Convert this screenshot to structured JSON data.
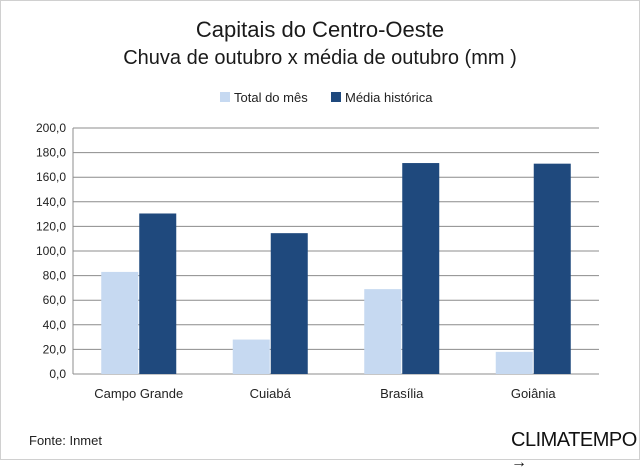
{
  "chart_data": {
    "type": "bar",
    "title": "Capitais do Centro-Oeste",
    "subtitle": "Chuva de outubro x média de outubro (mm )",
    "categories": [
      "Campo Grande",
      "Cuiabá",
      "Brasília",
      "Goiânia"
    ],
    "series": [
      {
        "name": "Total do mês",
        "values": [
          83,
          28,
          69,
          18
        ],
        "color": "#c6d9f1"
      },
      {
        "name": "Média histórica",
        "values": [
          130.5,
          114.5,
          171.5,
          171
        ],
        "color": "#1f497d"
      }
    ],
    "ylim": [
      0,
      200
    ],
    "yticks": [
      "0,0",
      "20,0",
      "40,0",
      "60,0",
      "80,0",
      "100,0",
      "120,0",
      "140,0",
      "160,0",
      "180,0",
      "200,0"
    ],
    "grid": true,
    "legend": "top"
  },
  "footer": {
    "source": "Fonte: Inmet",
    "brand": "CLIMATEMPO",
    "brand_arrow": "→"
  }
}
